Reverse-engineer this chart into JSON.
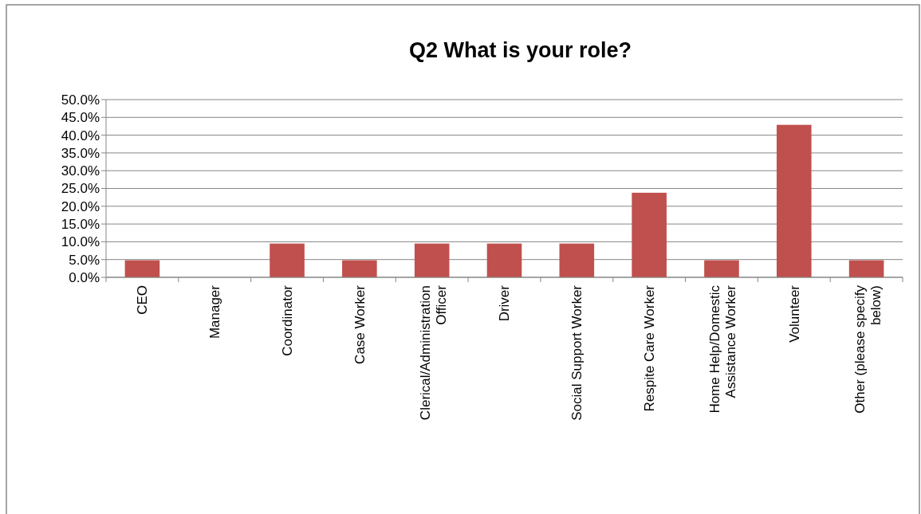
{
  "chart_data": {
    "type": "bar",
    "title": "Q2 What is your role?",
    "categories": [
      "CEO",
      "Manager",
      "Coordinator",
      "Case Worker",
      "Clerical/Administration Officer",
      "Driver",
      "Social Support Worker",
      "Respite Care Worker",
      "Home Help/Domestic Assistance Worker",
      "Volunteer",
      "Other (please specify below)"
    ],
    "values": [
      4.8,
      0,
      9.5,
      4.8,
      9.5,
      9.5,
      9.5,
      23.8,
      4.8,
      42.9,
      4.8
    ],
    "color": "#c0504d",
    "ylim": [
      0,
      50
    ],
    "yticks": [
      {
        "value": 0,
        "label": "0.0%"
      },
      {
        "value": 5,
        "label": "5.0%"
      },
      {
        "value": 10,
        "label": "10.0%"
      },
      {
        "value": 15,
        "label": "15.0%"
      },
      {
        "value": 20,
        "label": "20.0%"
      },
      {
        "value": 25,
        "label": "25.0%"
      },
      {
        "value": 30,
        "label": "30.0%"
      },
      {
        "value": 35,
        "label": "35.0%"
      },
      {
        "value": 40,
        "label": "40.0%"
      },
      {
        "value": 45,
        "label": "45.0%"
      },
      {
        "value": 50,
        "label": "50.0%"
      }
    ],
    "grid": "y"
  }
}
